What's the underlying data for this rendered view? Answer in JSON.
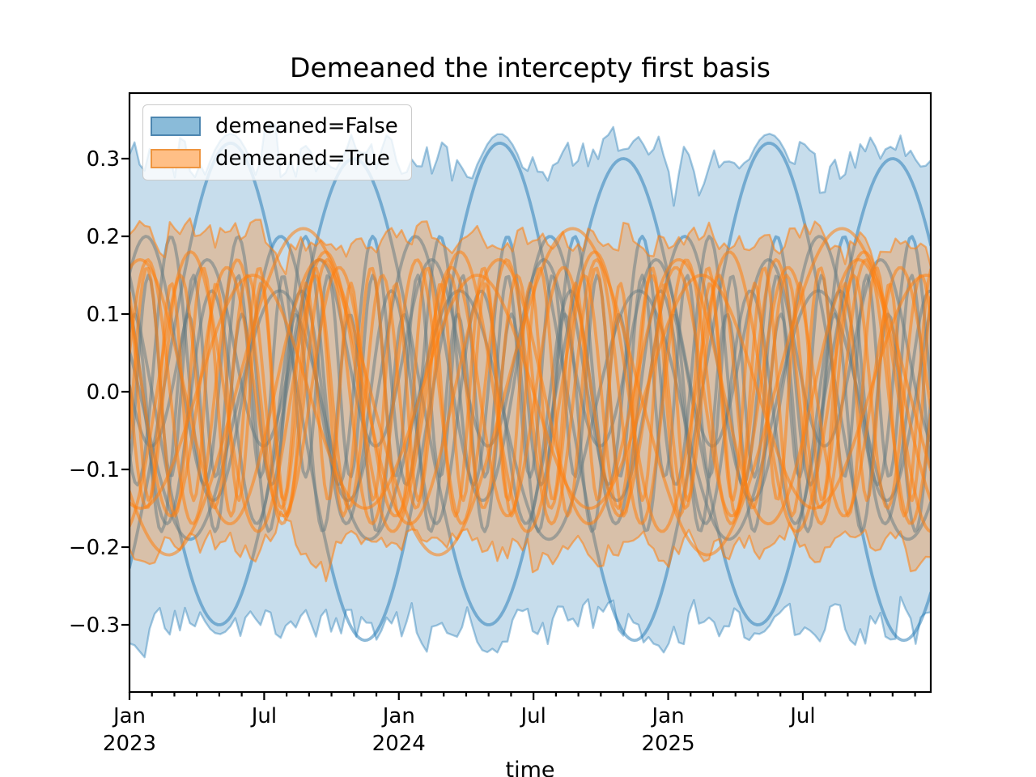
{
  "figure": {
    "title": "Demeaned the intercepty first basis",
    "xlabel": "time",
    "background": "#ffffff"
  },
  "legend": {
    "items": [
      {
        "label": "demeaned=False",
        "fill": "#8abbd9",
        "edge": "#4d86b0"
      },
      {
        "label": "demeaned=True",
        "fill": "#ffbf86",
        "edge": "#ee9540"
      }
    ]
  },
  "chart_data": {
    "type": "line",
    "title": "Demeaned the intercepty first basis",
    "xlabel": "time",
    "x_axis": {
      "unit": "months since Jan 2023",
      "range_months": [
        0,
        35.7
      ],
      "major_ticks": [
        {
          "t": 0,
          "month": "Jan",
          "year": "2023"
        },
        {
          "t": 6,
          "month": "Jul",
          "year": ""
        },
        {
          "t": 12,
          "month": "Jan",
          "year": "2024"
        },
        {
          "t": 18,
          "month": "Jul",
          "year": ""
        },
        {
          "t": 24,
          "month": "Jan",
          "year": "2025"
        },
        {
          "t": 30,
          "month": "Jul",
          "year": ""
        }
      ],
      "minor_tick_every_months": 1
    },
    "y_axis": {
      "range": [
        -0.385,
        0.385
      ],
      "ticks": [
        {
          "value": 0.3,
          "label": "0.3"
        },
        {
          "value": 0.2,
          "label": "0.2"
        },
        {
          "value": 0.1,
          "label": "0.1"
        },
        {
          "value": 0.0,
          "label": "0.0"
        },
        {
          "value": -0.1,
          "label": "−0.1"
        },
        {
          "value": -0.2,
          "label": "−0.2"
        },
        {
          "value": -0.3,
          "label": "−0.3"
        }
      ],
      "grid": false
    },
    "legend_position": "upper left",
    "noise_seed": 42,
    "band_points": 160,
    "curve_points": 300,
    "groups": [
      {
        "name": "demeaned=False",
        "color": "#1f77b4",
        "band": {
          "upper_mean": 0.3,
          "lower_mean": -0.3,
          "noise": 0.032,
          "fill_alpha": 0.25,
          "edge_alpha": 0.4,
          "follow_upper_curves": [
            0,
            1
          ],
          "follow_lower_curves": [
            0
          ],
          "follow_margin": 0.012
        },
        "curve_alpha": 0.5,
        "curve_width": 3.8,
        "curves": [
          {
            "amp": 0.3,
            "period_months": 12,
            "phase": 2.618,
            "offset": 0.0
          },
          {
            "amp": 0.32,
            "period_months": 12,
            "phase": 5.498,
            "offset": 0.0
          },
          {
            "amp": 0.17,
            "period_months": 6,
            "phase": 0.8,
            "offset": 0.03
          },
          {
            "amp": 0.15,
            "period_months": 4,
            "phase": 2.1,
            "offset": -0.02
          },
          {
            "amp": 0.16,
            "period_months": 3,
            "phase": 4.0,
            "offset": 0.04
          },
          {
            "amp": 0.14,
            "period_months": 2.4,
            "phase": 1.0,
            "offset": -0.04
          },
          {
            "amp": 0.13,
            "period_months": 2,
            "phase": 5.2,
            "offset": 0.02
          },
          {
            "amp": 0.16,
            "period_months": 8,
            "phase": 2.6,
            "offset": -0.03
          },
          {
            "amp": 0.12,
            "period_months": 5,
            "phase": 3.5,
            "offset": 0.05
          }
        ]
      },
      {
        "name": "demeaned=True",
        "color": "#ff7f0e",
        "band": {
          "upper_mean": 0.2,
          "lower_mean": -0.2,
          "noise": 0.022,
          "fill_alpha": 0.3,
          "edge_alpha": 0.55,
          "follow_upper_curves": [],
          "follow_lower_curves": [],
          "follow_margin": 0.012
        },
        "curve_alpha": 0.55,
        "curve_width": 3.8,
        "curves": [
          {
            "amp": 0.21,
            "period_months": 12,
            "phase": 3.8,
            "offset": 0
          },
          {
            "amp": 0.17,
            "period_months": 8,
            "phase": 1.2,
            "offset": 0
          },
          {
            "amp": 0.18,
            "period_months": 6,
            "phase": 5.0,
            "offset": 0
          },
          {
            "amp": 0.16,
            "period_months": 5,
            "phase": 2.4,
            "offset": 0
          },
          {
            "amp": 0.17,
            "period_months": 4,
            "phase": 0.3,
            "offset": 0
          },
          {
            "amp": 0.15,
            "period_months": 3,
            "phase": 3.1,
            "offset": 0
          },
          {
            "amp": 0.16,
            "period_months": 2.5,
            "phase": 5.9,
            "offset": 0
          },
          {
            "amp": 0.14,
            "period_months": 2,
            "phase": 2.0,
            "offset": 0
          },
          {
            "amp": 0.15,
            "period_months": 10,
            "phase": 4.4,
            "offset": 0
          }
        ]
      }
    ]
  }
}
